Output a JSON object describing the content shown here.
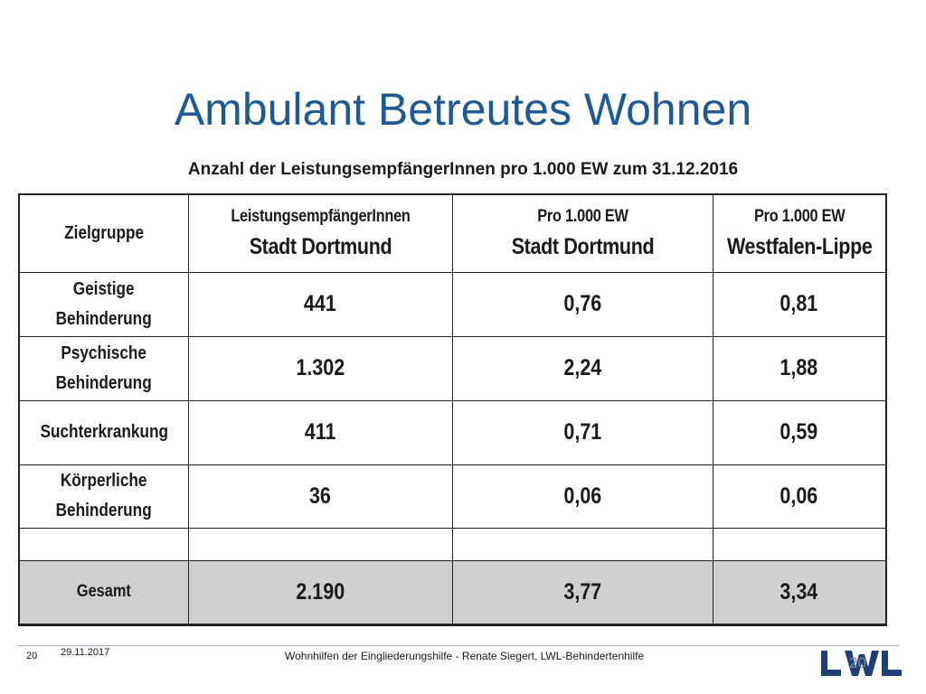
{
  "title": "Ambulant Betreutes Wohnen",
  "subtitle": "Anzahl der LeistungsempfängerInnen pro 1.000 EW zum 31.12.2016",
  "table": {
    "header": {
      "col1": "Zielgruppe",
      "col2_top": "LeistungsempfängerInnen",
      "col2_bottom": "Stadt Dortmund",
      "col3_top": "Pro 1.000 EW",
      "col3_bottom": "Stadt Dortmund",
      "col4_top": "Pro 1.000 EW",
      "col4_bottom": "Westfalen-Lippe"
    },
    "rows": [
      {
        "label_line1": "Geistige",
        "label_line2": "Behinderung",
        "recipients": "441",
        "per_1000_dortmund": "0,76",
        "per_1000_wl": "0,81"
      },
      {
        "label_line1": "Psychische",
        "label_line2": "Behinderung",
        "recipients": "1.302",
        "per_1000_dortmund": "2,24",
        "per_1000_wl": "1,88"
      },
      {
        "label_line1": "Suchterkrankung",
        "label_line2": "",
        "recipients": "411",
        "per_1000_dortmund": "0,71",
        "per_1000_wl": "0,59"
      },
      {
        "label_line1": "Körperliche",
        "label_line2": "Behinderung",
        "recipients": "36",
        "per_1000_dortmund": "0,06",
        "per_1000_wl": "0,06"
      }
    ],
    "total": {
      "label": "Gesamt",
      "recipients": "2.190",
      "per_1000_dortmund": "3,77",
      "per_1000_wl": "3,34"
    }
  },
  "footer": {
    "page_number": "20",
    "date": "29.11.2017",
    "text": "Wohnhilfen der Eingliederungshilfe - Renate Siegert, LWL-Behindertenhilfe",
    "logo_text": "LWL",
    "logo_page": "20"
  },
  "colors": {
    "title": "#1f5a96",
    "logo": "#1f3f75",
    "total_row_bg": "#d0d0d0"
  }
}
